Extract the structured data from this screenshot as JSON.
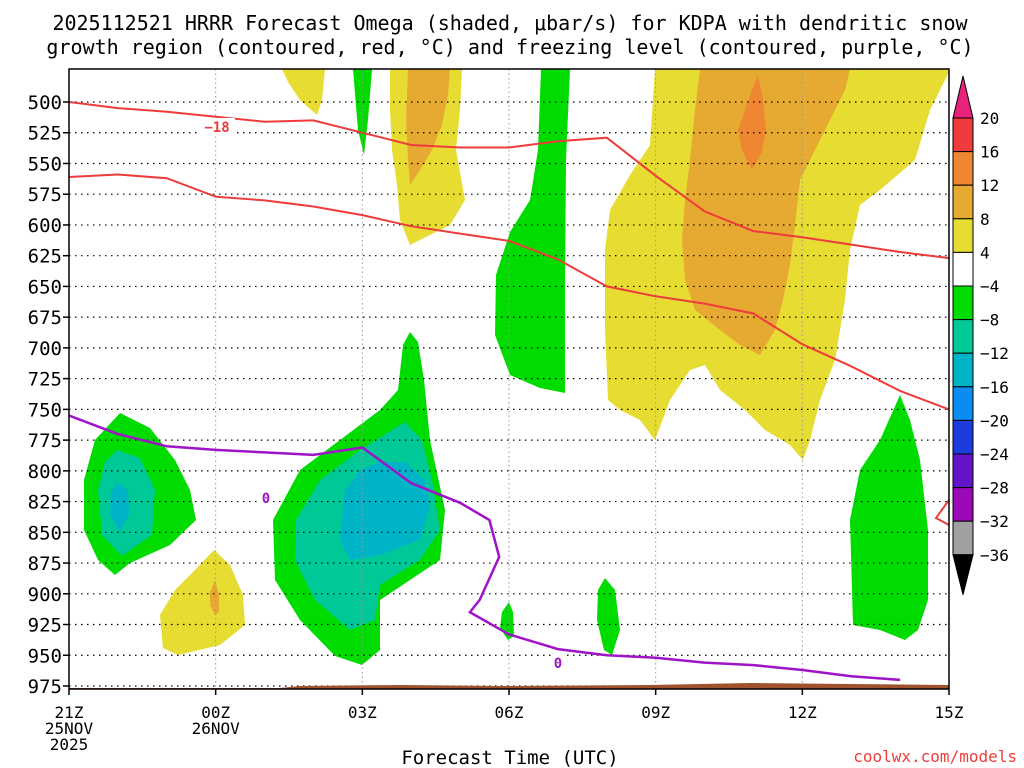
{
  "chart_data": {
    "type": "heatmap",
    "title_line1": "2025112521 HRRR Forecast Omega (shaded, μbar/s) for KDPA with dendritic snow",
    "title_line2": "growth region (contoured, red, °C) and freezing level (contoured, purple, °C)",
    "xlabel": "Forecast Time (UTC)",
    "credit": "coolwx.com/models",
    "x_hours": [
      0,
      3,
      6,
      9,
      12,
      15,
      18
    ],
    "x_ticks": [
      {
        "h": 0,
        "l1": "21Z",
        "l2": "25NOV",
        "l3": "2025"
      },
      {
        "h": 3,
        "l1": "00Z",
        "l2": "26NOV",
        "l3": ""
      },
      {
        "h": 6,
        "l1": "03Z",
        "l2": "",
        "l3": ""
      },
      {
        "h": 9,
        "l1": "06Z",
        "l2": "",
        "l3": ""
      },
      {
        "h": 12,
        "l1": "09Z",
        "l2": "",
        "l3": ""
      },
      {
        "h": 15,
        "l1": "12Z",
        "l2": "",
        "l3": ""
      },
      {
        "h": 18,
        "l1": "15Z",
        "l2": "",
        "l3": ""
      }
    ],
    "y_ticks": [
      "500",
      "525",
      "550",
      "575",
      "600",
      "625",
      "650",
      "675",
      "700",
      "725",
      "750",
      "775",
      "800",
      "825",
      "850",
      "875",
      "900",
      "925",
      "950",
      "975"
    ],
    "ylim_hpa": [
      465,
      987
    ],
    "colorbar": {
      "labels": [
        "20",
        "16",
        "12",
        "8",
        "4",
        "−4",
        "−8",
        "−12",
        "−16",
        "−20",
        "−24",
        "−28",
        "−32",
        "−36"
      ],
      "colors": [
        "#e8237b",
        "#ee3c3c",
        "#ee8632",
        "#e6aa32",
        "#e6dc32",
        "#ffffff",
        "#00dc00",
        "#00c896",
        "#00b4c8",
        "#0a8cf0",
        "#1e3cdc",
        "#6414c8",
        "#9c09b8",
        "#a0a0a0",
        "#000000"
      ]
    },
    "contours": {
      "red_label": "−18",
      "purple_label_1": "0",
      "purple_label_2": "0",
      "red_upper": [
        [
          0,
          500
        ],
        [
          1,
          505
        ],
        [
          2,
          508
        ],
        [
          3,
          512
        ],
        [
          4,
          516
        ],
        [
          5,
          515
        ],
        [
          6,
          525
        ],
        [
          7,
          535
        ],
        [
          8,
          537
        ],
        [
          9,
          537
        ],
        [
          10,
          532
        ],
        [
          11,
          529
        ],
        [
          12,
          560
        ],
        [
          13,
          589
        ],
        [
          14,
          605
        ],
        [
          15,
          610
        ],
        [
          16,
          616
        ],
        [
          17,
          622
        ],
        [
          18,
          627
        ]
      ],
      "red_lower": [
        [
          0,
          561
        ],
        [
          1,
          559
        ],
        [
          2,
          562
        ],
        [
          3,
          577
        ],
        [
          4,
          580
        ],
        [
          5,
          585
        ],
        [
          6,
          592
        ],
        [
          7,
          601
        ],
        [
          8,
          607
        ],
        [
          9,
          613
        ],
        [
          10,
          628
        ],
        [
          11,
          650
        ],
        [
          12,
          658
        ],
        [
          13,
          664
        ],
        [
          14,
          672
        ],
        [
          15,
          697
        ],
        [
          16,
          715
        ],
        [
          17,
          735
        ],
        [
          18,
          750
        ]
      ],
      "purple": [
        [
          0,
          755
        ],
        [
          1,
          770
        ],
        [
          2,
          780
        ],
        [
          3,
          783
        ],
        [
          4,
          785
        ],
        [
          5,
          787
        ],
        [
          6,
          781
        ],
        [
          7,
          810
        ],
        [
          8,
          826
        ],
        [
          8.6,
          840
        ],
        [
          8.8,
          870
        ],
        [
          8.4,
          905
        ],
        [
          8.2,
          915
        ],
        [
          9,
          933
        ],
        [
          10,
          945
        ],
        [
          11,
          950
        ],
        [
          12,
          952
        ],
        [
          13,
          956
        ],
        [
          14,
          958
        ],
        [
          15,
          962
        ],
        [
          16,
          967
        ],
        [
          17,
          970
        ]
      ]
    }
  }
}
